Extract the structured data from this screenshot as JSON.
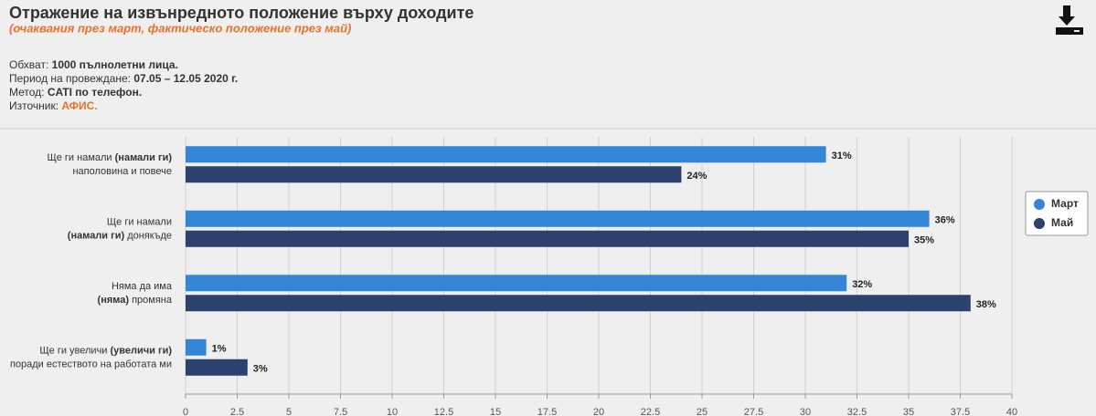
{
  "header": {
    "title": "Отражение на извънредното положение върху доходите",
    "subtitle": "(очаквания през март, фактическо положение през май)"
  },
  "info": [
    {
      "label": "Обхват:",
      "value": "1000 пълнолетни лица."
    },
    {
      "label": "Период на провеждане:",
      "value": "07.05 – 12.05 2020 г."
    },
    {
      "label": "Метод:",
      "value": "CATI по телефон."
    },
    {
      "label": "Източник:",
      "value": "АФИС."
    }
  ],
  "chart_data": {
    "type": "bar",
    "orientation": "horizontal",
    "categories": [
      [
        [
          {
            "text": "Ще ги намали ",
            "bold": false
          },
          {
            "text": "(намали ги)",
            "bold": true
          }
        ],
        [
          {
            "text": "наполовина и повече",
            "bold": false
          }
        ]
      ],
      [
        [
          {
            "text": "Ще ги намали",
            "bold": false
          }
        ],
        [
          {
            "text": "(намали ги)",
            "bold": true
          },
          {
            "text": " донякъде",
            "bold": false
          }
        ]
      ],
      [
        [
          {
            "text": "Няма да има",
            "bold": false
          }
        ],
        [
          {
            "text": "(няма)",
            "bold": true
          },
          {
            "text": " промяна",
            "bold": false
          }
        ]
      ],
      [
        [
          {
            "text": "Ще ги увеличи ",
            "bold": false
          },
          {
            "text": "(увеличи ги)",
            "bold": true
          }
        ],
        [
          {
            "text": "поради естеството на работата ми",
            "bold": false
          }
        ]
      ]
    ],
    "series": [
      {
        "name": "Март",
        "color": "#3385d6",
        "values": [
          31,
          36,
          32,
          1
        ],
        "value_labels": [
          "31%",
          "36%",
          "32%",
          "1%"
        ]
      },
      {
        "name": "Май",
        "color": "#2c416e",
        "values": [
          24,
          35,
          38,
          3
        ],
        "value_labels": [
          "24%",
          "35%",
          "38%",
          "3%"
        ]
      }
    ],
    "xlim": [
      0,
      40
    ],
    "xticks": [
      0,
      2.5,
      5,
      7.5,
      10,
      12.5,
      15,
      17.5,
      20,
      22.5,
      25,
      27.5,
      30,
      32.5,
      35,
      37.5,
      40
    ],
    "grid": true,
    "legend": "right"
  }
}
